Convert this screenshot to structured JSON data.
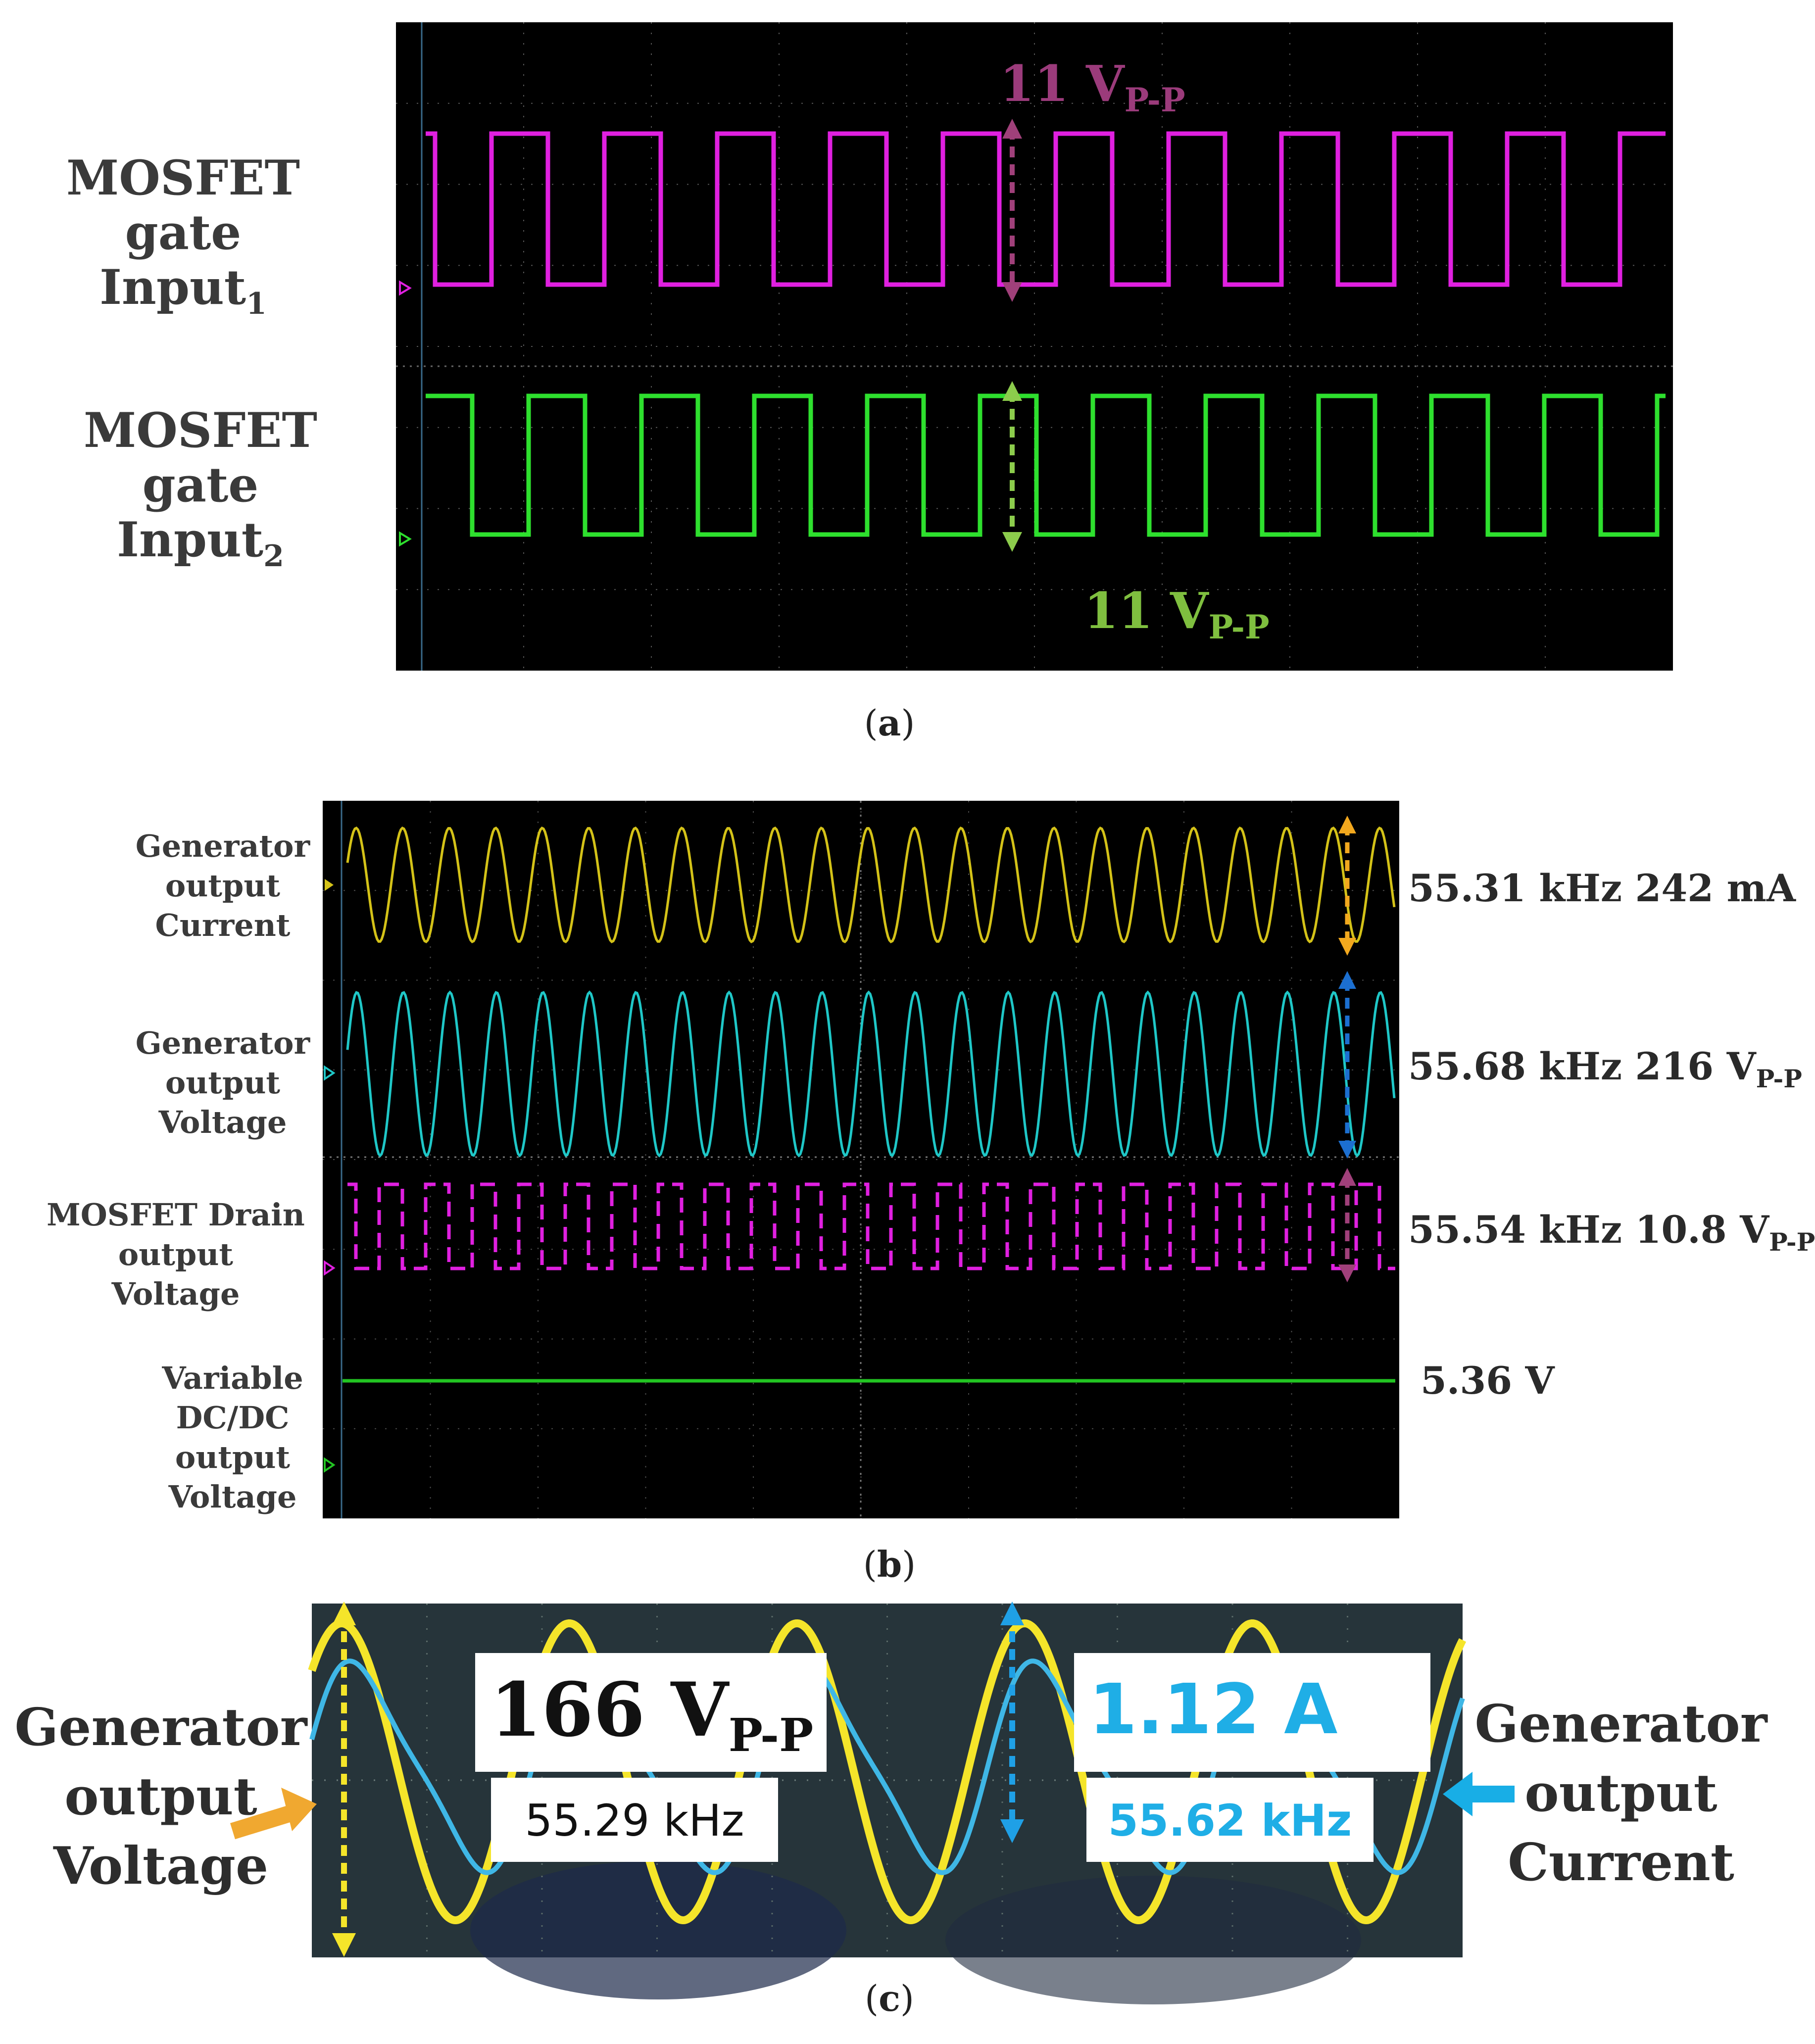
{
  "panel_a": {
    "label_in1_main": "MOSFET gate",
    "label_in1_sub": "Input",
    "label_in1_idx": "1",
    "label_in2_main": "MOSFET gate",
    "label_in2_sub": "Input",
    "label_in2_idx": "2",
    "amp1_main": "11 V",
    "amp1_sub": "P-P",
    "amp2_main": "11 V",
    "amp2_sub": "P-P",
    "caption_letter": "a",
    "colors": {
      "ch1": "#e020e0",
      "ch2": "#2ee02e",
      "arrow1": "#a0407a",
      "arrow2": "#8ccc4c",
      "text1": "#9b3b7b",
      "text2": "#7fbf3f"
    }
  },
  "panel_b": {
    "ch1_label": [
      "Generator",
      "output",
      "Current"
    ],
    "ch2_label": [
      "Generator",
      "output",
      "Voltage"
    ],
    "ch3_label": [
      "MOSFET Drain",
      "output",
      "Voltage"
    ],
    "ch4_label": [
      "Variable",
      "DC/DC",
      "output",
      "Voltage"
    ],
    "meas1": "55.31 kHz 242 mA",
    "meas2_main": "55.68 kHz 216 V",
    "meas2_sub": "P-P",
    "meas3_main": "55.54 kHz 10.8 V",
    "meas3_sub": "P-P",
    "meas4": "5.36 V",
    "caption_letter": "b",
    "colors": {
      "current": "#d4c218",
      "voltage": "#1fc7c7",
      "drain": "#e020e0",
      "dc": "#22c422",
      "arrow1": "#f2a81e",
      "arrow2": "#1c6fd0",
      "arrow3": "#a0407a"
    }
  },
  "panel_c": {
    "left_label": [
      "Generator",
      "output",
      "Voltage"
    ],
    "right_label": [
      "Generator",
      "output",
      "Current"
    ],
    "volt_main": "166 V",
    "volt_sub": "P-P",
    "volt_freq": "55.29 kHz",
    "curr_main": "1.12 A",
    "curr_freq": "55.62 kHz",
    "caption_letter": "c",
    "colors": {
      "voltage": "#f5e52a",
      "current": "#3fb7e6",
      "left_arrow": "#f0a830",
      "right_arrow": "#18aee6",
      "volt_text": "#111111",
      "curr_text": "#1faee6"
    }
  },
  "chart_data": [
    {
      "type": "line",
      "title": "",
      "series": [
        {
          "name": "MOSFET gate Input1",
          "shape": "square",
          "amplitude_vpp": 11,
          "cycles_visible": 11
        },
        {
          "name": "MOSFET gate Input2",
          "shape": "square",
          "amplitude_vpp": 11,
          "cycles_visible": 11
        }
      ],
      "annotations": [
        "11 VP-P",
        "11 VP-P"
      ]
    },
    {
      "type": "line",
      "title": "",
      "series": [
        {
          "name": "Generator output Current",
          "shape": "sine",
          "frequency_khz": 55.31,
          "amplitude": "242 mA",
          "cycles_visible": 22
        },
        {
          "name": "Generator output Voltage",
          "shape": "sine",
          "frequency_khz": 55.68,
          "amplitude": "216 VP-P",
          "cycles_visible": 22
        },
        {
          "name": "MOSFET Drain output Voltage",
          "shape": "square",
          "frequency_khz": 55.54,
          "amplitude": "10.8 VP-P",
          "cycles_visible": 22
        },
        {
          "name": "Variable DC/DC output Voltage",
          "shape": "dc",
          "value_v": 5.36
        }
      ]
    },
    {
      "type": "line",
      "title": "",
      "series": [
        {
          "name": "Generator output Voltage",
          "shape": "sine",
          "frequency_khz": 55.29,
          "amplitude": "166 VP-P",
          "cycles_visible": 4.5
        },
        {
          "name": "Generator output Current",
          "shape": "distorted-sine",
          "frequency_khz": 55.62,
          "amplitude": "1.12 A",
          "cycles_visible": 4.5
        }
      ]
    }
  ]
}
